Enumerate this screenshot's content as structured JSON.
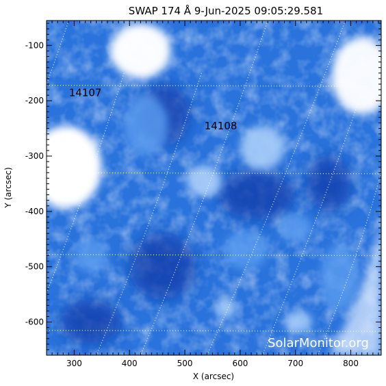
{
  "chart_data": {
    "type": "heatmap",
    "title": "SWAP 174 Å  9-Jun-2025 09:05:29.581",
    "xlabel": "X (arcsec)",
    "ylabel": "Y (arcsec)",
    "xlim": [
      250,
      855
    ],
    "ylim": [
      -660,
      -55
    ],
    "xticks": [
      300,
      400,
      500,
      600,
      700,
      800
    ],
    "xtick_labels": [
      "300",
      "400",
      "500",
      "600",
      "700",
      "800"
    ],
    "yticks": [
      -100,
      -200,
      -300,
      -400,
      -500,
      -600
    ],
    "ytick_labels": [
      "-100",
      "-200",
      "-300",
      "-400",
      "-500",
      "-600"
    ],
    "grid": true,
    "colormap": [
      "#0a3aa8",
      "#1f68d8",
      "#5a9cef",
      "#a9cdf8",
      "#ffffff"
    ],
    "active_regions": [
      {
        "label": "14107",
        "x": 320,
        "y": -192
      },
      {
        "label": "14108",
        "x": 565,
        "y": -252
      }
    ],
    "bright_regions": [
      {
        "x": 285,
        "y": -320,
        "rx": 65,
        "ry": 75,
        "level": 1.0
      },
      {
        "x": 420,
        "y": -110,
        "rx": 55,
        "ry": 50,
        "level": 0.95
      },
      {
        "x": 820,
        "y": -155,
        "rx": 55,
        "ry": 70,
        "level": 0.9
      },
      {
        "x": 640,
        "y": -285,
        "rx": 40,
        "ry": 40,
        "level": 0.75
      },
      {
        "x": 535,
        "y": -345,
        "rx": 32,
        "ry": 28,
        "level": 0.8
      },
      {
        "x": 430,
        "y": -245,
        "rx": 40,
        "ry": 55,
        "level": 0.55
      },
      {
        "x": 700,
        "y": -430,
        "rx": 30,
        "ry": 25,
        "level": 0.55
      },
      {
        "x": 705,
        "y": -600,
        "rx": 25,
        "ry": 20,
        "level": 0.7
      },
      {
        "x": 575,
        "y": -575,
        "rx": 18,
        "ry": 18,
        "level": 0.75
      },
      {
        "x": 330,
        "y": -480,
        "rx": 30,
        "ry": 30,
        "level": 0.45
      },
      {
        "x": 610,
        "y": -470,
        "rx": 40,
        "ry": 35,
        "level": 0.45
      },
      {
        "x": 780,
        "y": -520,
        "rx": 35,
        "ry": 60,
        "level": 0.5
      }
    ],
    "dark_regions": [
      {
        "x": 465,
        "y": -225,
        "rx": 45,
        "ry": 55
      },
      {
        "x": 630,
        "y": -370,
        "rx": 70,
        "ry": 45
      },
      {
        "x": 460,
        "y": -500,
        "rx": 60,
        "ry": 60
      },
      {
        "x": 330,
        "y": -600,
        "rx": 55,
        "ry": 40
      },
      {
        "x": 760,
        "y": -350,
        "rx": 40,
        "ry": 50
      }
    ]
  },
  "watermark": "SolarMonitor.org"
}
